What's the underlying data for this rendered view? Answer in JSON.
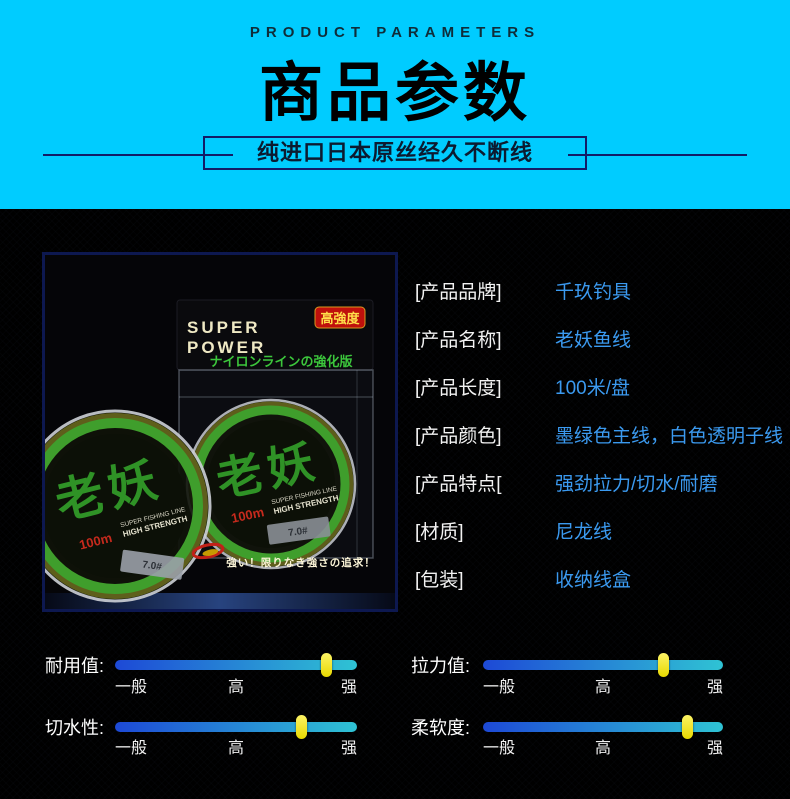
{
  "header": {
    "eyebrow": "PRODUCT PARAMETERS",
    "title": "商品参数",
    "banner": "纯进口日本原丝经久不断线"
  },
  "photo": {
    "brand_top": "SUPER",
    "brand_bottom": "POWER",
    "badge": "高強度",
    "tagline_jp": "ナイロンラインの強化版",
    "spool_name": "老妖",
    "length": "100m",
    "sub_line1": "SUPER FISHING LINE",
    "sub_line2": "HIGH STRENGTH",
    "spec": "7.0#",
    "slogan": "強い！限りなき強さの追求！"
  },
  "parameters": [
    {
      "label": "[产品品牌]",
      "value": "千玖钓具"
    },
    {
      "label": "[产品名称]",
      "value": "老妖鱼线"
    },
    {
      "label": "[产品长度]",
      "value": "100米/盘"
    },
    {
      "label": "[产品颜色]",
      "value": "墨绿色主线，白色透明子线"
    },
    {
      "label": "[产品特点[",
      "value": "强劲拉力/切水/耐磨"
    },
    {
      "label": "[材质]",
      "value": "尼龙线"
    },
    {
      "label": "[包装]",
      "value": "收纳线盒"
    }
  ],
  "ratings": {
    "scale": [
      "一般",
      "高",
      "强"
    ],
    "items": [
      {
        "label": "耐用值:",
        "percent": 87
      },
      {
        "label": "拉力值:",
        "percent": 75
      },
      {
        "label": "切水性:",
        "percent": 77
      },
      {
        "label": "柔软度:",
        "percent": 85
      }
    ]
  },
  "colors": {
    "page_blue": "#00ccff",
    "panel_black": "#000000",
    "banner_line_navy": "#131c66",
    "param_value_blue": "#3b9af0",
    "param_label_white": "#f2f2f2",
    "bar_gradient_start": "#1d49d6",
    "bar_gradient_end": "#2fc3d4",
    "knob_yellow": "#f2e41c",
    "spool_green": "#2f9226",
    "badge_red": "#bf100c"
  }
}
